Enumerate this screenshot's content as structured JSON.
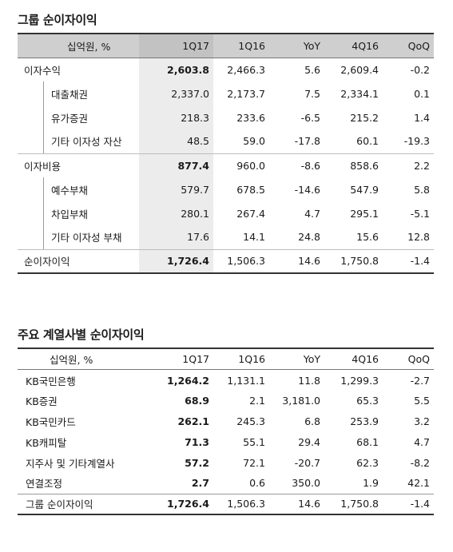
{
  "table1": {
    "title": "그룹 순이자이익",
    "headers": [
      "십억원, %",
      "1Q17",
      "1Q16",
      "YoY",
      "4Q16",
      "QoQ"
    ],
    "rows": [
      {
        "label": "이자수익",
        "values": [
          "2,603.8",
          "2,466.3",
          "5.6",
          "2,609.4",
          "-0.2"
        ]
      },
      {
        "label": "대출채권",
        "values": [
          "2,337.0",
          "2,173.7",
          "7.5",
          "2,334.1",
          "0.1"
        ]
      },
      {
        "label": "유가증권",
        "values": [
          "218.3",
          "233.6",
          "-6.5",
          "215.2",
          "1.4"
        ]
      },
      {
        "label": "기타 이자성 자산",
        "values": [
          "48.5",
          "59.0",
          "-17.8",
          "60.1",
          "-19.3"
        ]
      },
      {
        "label": "이자비용",
        "values": [
          "877.4",
          "960.0",
          "-8.6",
          "858.6",
          "2.2"
        ]
      },
      {
        "label": "예수부채",
        "values": [
          "579.7",
          "678.5",
          "-14.6",
          "547.9",
          "5.8"
        ]
      },
      {
        "label": "차입부채",
        "values": [
          "280.1",
          "267.4",
          "4.7",
          "295.1",
          "-5.1"
        ]
      },
      {
        "label": "기타 이자성 부채",
        "values": [
          "17.6",
          "14.1",
          "24.8",
          "15.6",
          "12.8"
        ]
      },
      {
        "label": "순이자이익",
        "values": [
          "1,726.4",
          "1,506.3",
          "14.6",
          "1,750.8",
          "-1.4"
        ]
      }
    ]
  },
  "table2": {
    "title": "주요 계열사별 순이자이익",
    "headers": [
      "십억원, %",
      "1Q17",
      "1Q16",
      "YoY",
      "4Q16",
      "QoQ"
    ],
    "rows": [
      {
        "label": "KB국민은행",
        "values": [
          "1,264.2",
          "1,131.1",
          "11.8",
          "1,299.3",
          "-2.7"
        ]
      },
      {
        "label": "KB증권",
        "values": [
          "68.9",
          "2.1",
          "3,181.0",
          "65.3",
          "5.5"
        ]
      },
      {
        "label": "KB국민카드",
        "values": [
          "262.1",
          "245.3",
          "6.8",
          "253.9",
          "3.2"
        ]
      },
      {
        "label": "KB캐피탈",
        "values": [
          "71.3",
          "55.1",
          "29.4",
          "68.1",
          "4.7"
        ]
      },
      {
        "label": "지주사 및 기타계열사",
        "values": [
          "57.2",
          "72.1",
          "-20.7",
          "62.3",
          "-8.2"
        ]
      },
      {
        "label": "연결조정",
        "values": [
          "2.7",
          "0.6",
          "350.0",
          "1.9",
          "42.1"
        ]
      },
      {
        "label": "그룹 순이자이익",
        "values": [
          "1,726.4",
          "1,506.3",
          "14.6",
          "1,750.8",
          "-1.4"
        ]
      }
    ]
  }
}
